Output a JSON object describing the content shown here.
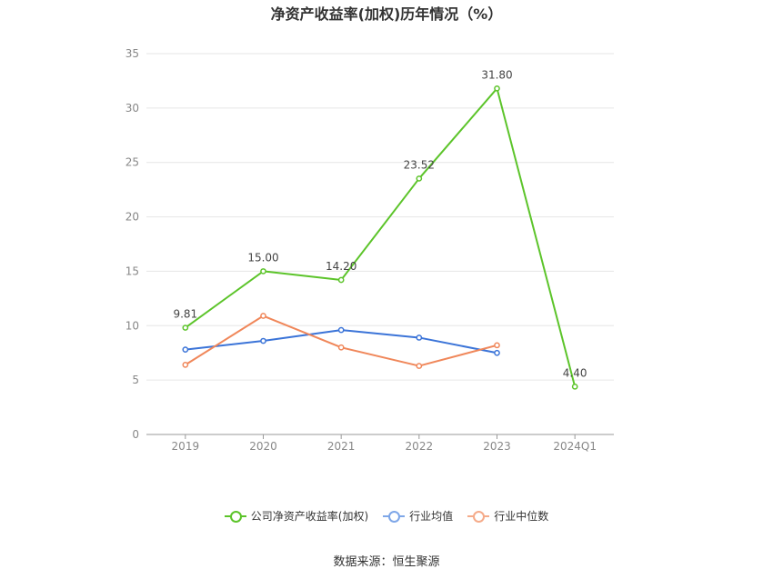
{
  "chart_data": {
    "type": "line",
    "title": "净资产收益率(加权)历年情况（%）",
    "categories": [
      "2019",
      "2020",
      "2021",
      "2022",
      "2023",
      "2024Q1"
    ],
    "ylim": [
      0,
      35
    ],
    "yticks": [
      0,
      5,
      10,
      15,
      20,
      25,
      30,
      35
    ],
    "grid": true,
    "legend_position": "bottom",
    "series": [
      {
        "name": "公司净资产收益率(加权)",
        "color": "#5cc42a",
        "values": [
          9.81,
          15.0,
          14.2,
          23.52,
          31.8,
          4.4
        ],
        "labels": [
          "9.81",
          "15.00",
          "14.20",
          "23.52",
          "31.80",
          "4.40"
        ]
      },
      {
        "name": "行业均值",
        "color": "#3b74d8",
        "values": [
          7.8,
          8.6,
          9.6,
          8.9,
          7.5,
          null
        ]
      },
      {
        "name": "行业中位数",
        "color": "#f0875a",
        "values": [
          6.4,
          10.9,
          8.0,
          6.3,
          8.2,
          null
        ]
      }
    ]
  },
  "footer": {
    "source": "数据来源：恒生聚源"
  }
}
